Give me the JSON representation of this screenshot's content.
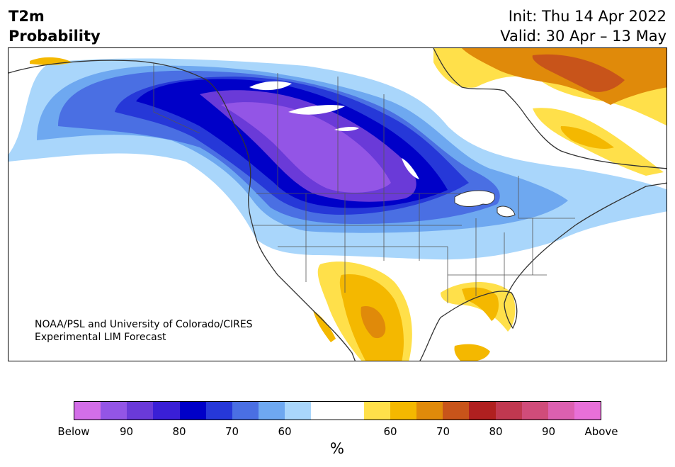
{
  "header": {
    "variable": "T2m",
    "product": "Probability",
    "init": "Init: Thu 14 Apr 2022",
    "valid": "Valid: 30 Apr – 13 May"
  },
  "map": {
    "credit_line1": "NOAA/PSL and University of Colorado/CIRES",
    "credit_line2": "Experimental LIM Forecast",
    "region": "North America",
    "below_shades": [
      "#a9d6fb",
      "#6ea8f0",
      "#4a6fe3",
      "#2638d8",
      "#0000c8",
      "#3a1fd6",
      "#6a3ad8",
      "#9355e6"
    ],
    "above_shades": [
      "#ffe04a",
      "#f4b800",
      "#e08a0a",
      "#c8541a"
    ]
  },
  "colorbar": {
    "colors": [
      "#d36ee8",
      "#9355e6",
      "#6a3ad8",
      "#3a1fd6",
      "#0000c8",
      "#2638d8",
      "#4a6fe3",
      "#6ea8f0",
      "#a9d6fb",
      "#ffffff",
      "#ffffff",
      "#ffe04a",
      "#f4b800",
      "#e08a0a",
      "#c8541a",
      "#b02020",
      "#c03850",
      "#d04c7a",
      "#dc60b0",
      "#e870d8"
    ],
    "tick_labels": [
      "Below",
      "90",
      "80",
      "70",
      "60",
      "60",
      "70",
      "80",
      "90",
      "Above"
    ],
    "unit_label": "%"
  }
}
